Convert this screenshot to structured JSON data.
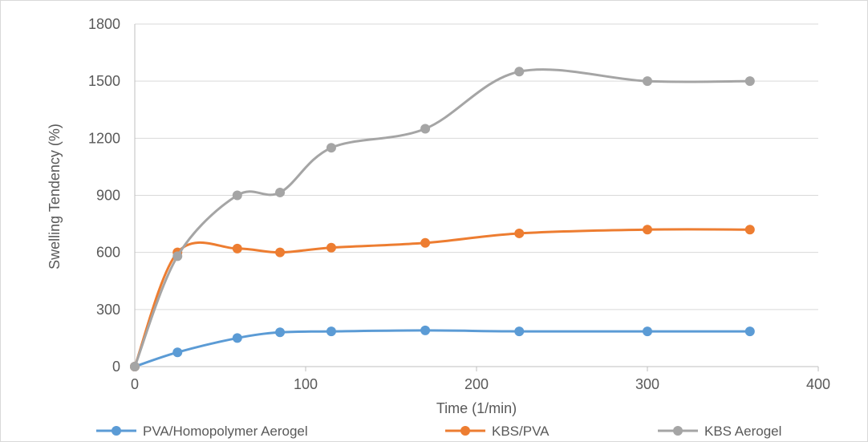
{
  "chart_data": {
    "type": "line",
    "title": "",
    "xlabel": "Time (1/min)",
    "ylabel": "Swelling Tendency (%)",
    "xlim": [
      0,
      400
    ],
    "ylim": [
      0,
      1800
    ],
    "x_ticks": [
      "0",
      "100",
      "200",
      "300",
      "400"
    ],
    "y_ticks": [
      "0",
      "300",
      "600",
      "900",
      "1200",
      "1500",
      "1800"
    ],
    "grid": "horizontal",
    "legend_position": "bottom",
    "smooth": true,
    "x": [
      0,
      25,
      60,
      85,
      115,
      170,
      225,
      300,
      360
    ],
    "series": [
      {
        "name": "PVA/Homopolymer Aerogel",
        "color": "#5b9bd5",
        "values": [
          0,
          75,
          150,
          180,
          185,
          190,
          185,
          185,
          185
        ]
      },
      {
        "name": "KBS/PVA",
        "color": "#ed7d31",
        "values": [
          0,
          600,
          620,
          600,
          625,
          650,
          700,
          720,
          720
        ]
      },
      {
        "name": "KBS Aerogel",
        "color": "#a5a5a5",
        "values": [
          0,
          580,
          900,
          915,
          1150,
          1250,
          1550,
          1500,
          1500
        ]
      }
    ]
  }
}
